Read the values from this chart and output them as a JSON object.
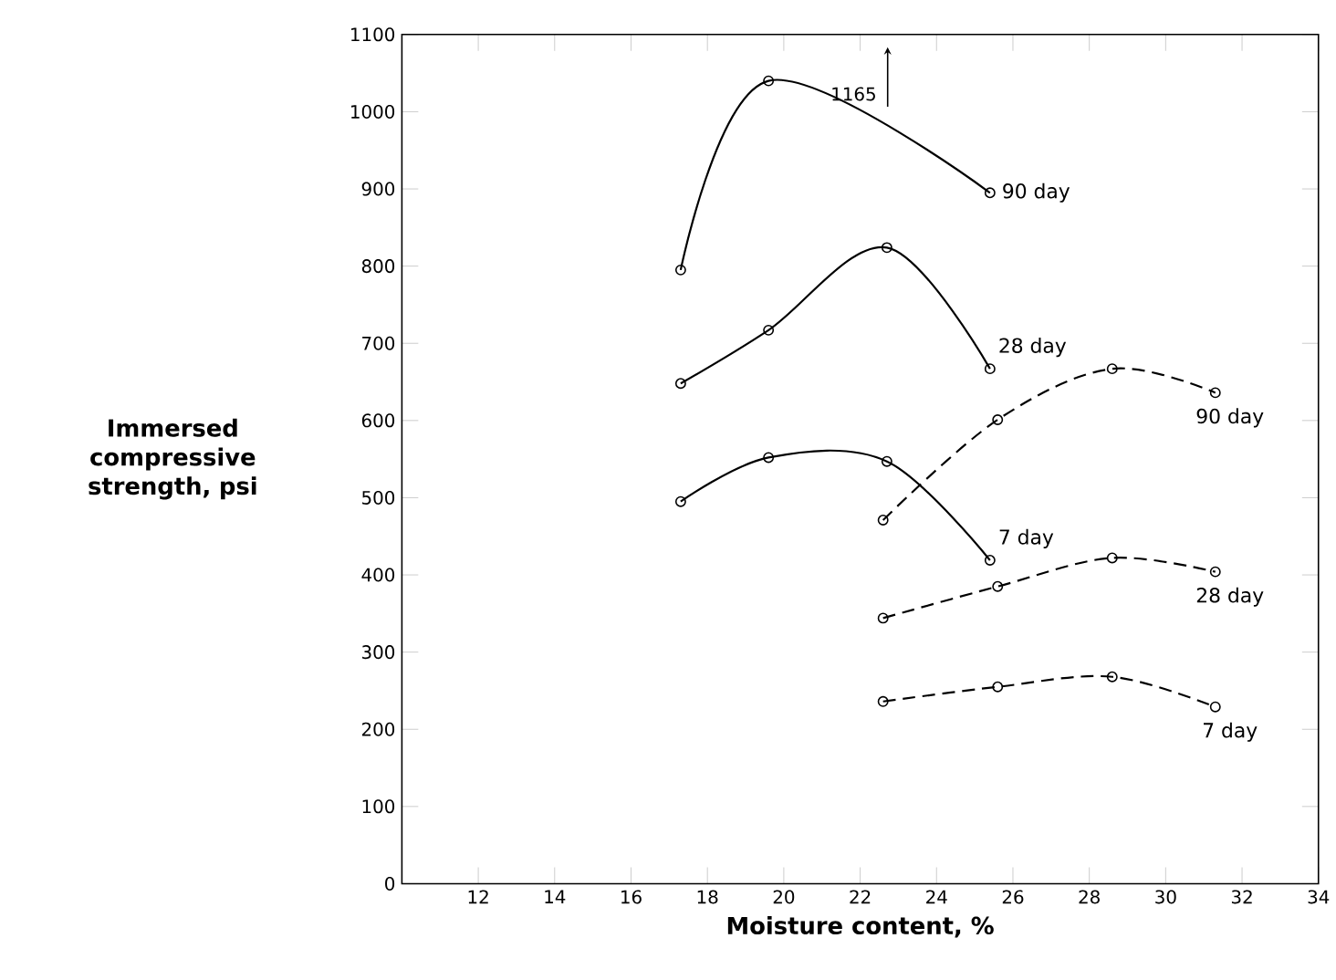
{
  "chart_data": {
    "type": "line",
    "xlabel": "Moisture content, %",
    "ylabel": "Immersed compressive strength, psi",
    "xlim": [
      10,
      34
    ],
    "ylim": [
      0,
      1100
    ],
    "xticks": [
      12,
      14,
      16,
      18,
      20,
      22,
      24,
      26,
      28,
      30,
      32,
      34
    ],
    "yticks": [
      0,
      100,
      200,
      300,
      400,
      500,
      600,
      700,
      800,
      900,
      1000,
      1100
    ],
    "grid": false,
    "legend": false,
    "marker": "circle",
    "annotations": [
      "1165"
    ],
    "series": [
      {
        "name": "90 day",
        "color": "#000000",
        "line_style": "solid",
        "x": [
          17.3,
          19.6,
          25.4
        ],
        "values": [
          795,
          1040,
          895
        ]
      },
      {
        "name": "28 day",
        "color": "#000000",
        "line_style": "solid",
        "x": [
          17.3,
          19.6,
          22.7,
          25.4
        ],
        "values": [
          648,
          717,
          824,
          667
        ]
      },
      {
        "name": "7 day",
        "color": "#000000",
        "line_style": "solid",
        "x": [
          17.3,
          19.6,
          22.7,
          25.4
        ],
        "values": [
          495,
          552,
          547,
          419
        ]
      },
      {
        "name": "90 day",
        "color": "#000000",
        "line_style": "dashed",
        "x": [
          22.6,
          25.6,
          28.6,
          31.3
        ],
        "values": [
          471,
          601,
          667,
          636
        ]
      },
      {
        "name": "28 day",
        "color": "#000000",
        "line_style": "dashed",
        "x": [
          22.6,
          25.6,
          28.6,
          31.3
        ],
        "values": [
          344,
          385,
          422,
          404
        ]
      },
      {
        "name": "7 day",
        "color": "#000000",
        "line_style": "dashed",
        "x": [
          22.6,
          25.6,
          28.6,
          31.3
        ],
        "values": [
          236,
          255,
          268,
          229
        ]
      }
    ]
  }
}
